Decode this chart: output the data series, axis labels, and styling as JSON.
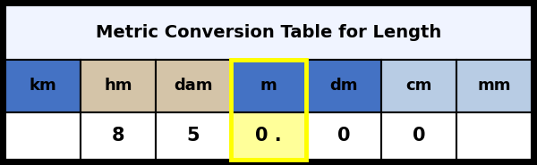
{
  "title": "Metric Conversion Table for Length",
  "headers": [
    "km",
    "hm",
    "dam",
    "m",
    "dm",
    "cm",
    "mm"
  ],
  "values": [
    "",
    "8",
    "5",
    "0 .",
    "0",
    "0",
    ""
  ],
  "header_colors": [
    "#4472c4",
    "#d4c4a8",
    "#d4c4a8",
    "#4472c4",
    "#4472c4",
    "#b8cce4",
    "#b8cce4"
  ],
  "value_bg_colors": [
    "#ffffff",
    "#ffffff",
    "#ffffff",
    "#ffff99",
    "#ffffff",
    "#ffffff",
    "#ffffff"
  ],
  "title_bg": "#f0f4ff",
  "border_color": "#000000",
  "title_fontsize": 14,
  "header_fontsize": 13,
  "value_fontsize": 15,
  "fig_bg": "#000000",
  "inner_bg": "#ffffff",
  "highlight_col": 3,
  "highlight_border": "#ffff00",
  "highlight_lw": 3.5
}
